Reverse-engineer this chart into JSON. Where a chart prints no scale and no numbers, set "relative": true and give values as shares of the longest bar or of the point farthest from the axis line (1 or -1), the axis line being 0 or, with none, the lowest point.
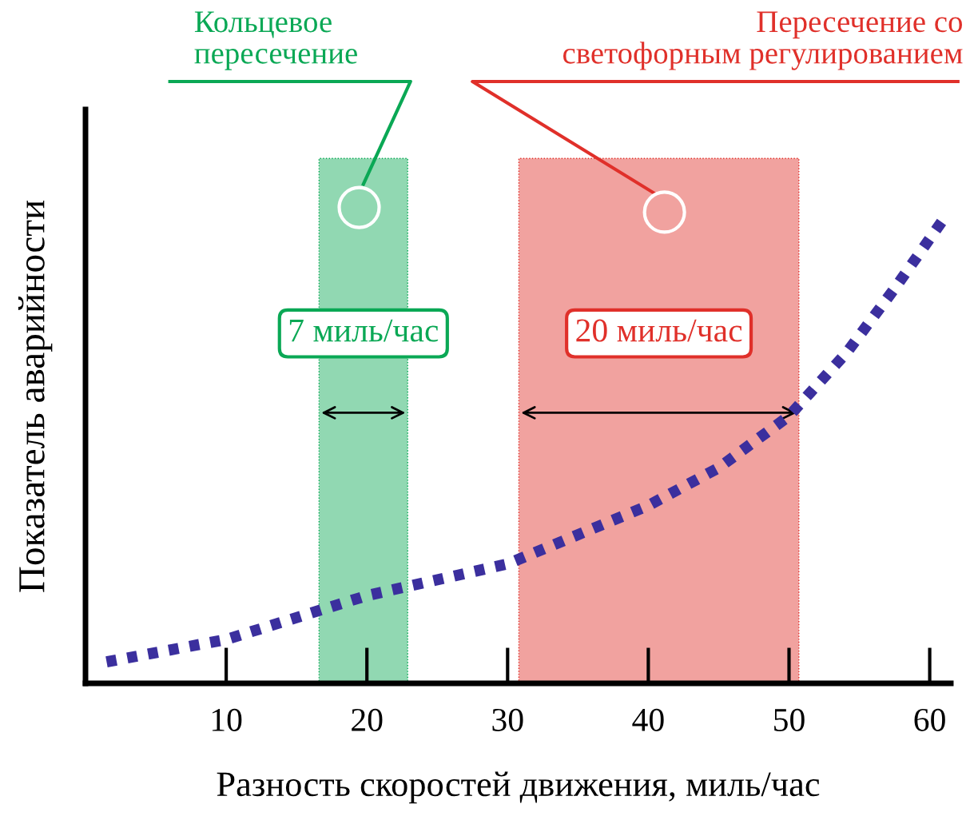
{
  "chart_data": {
    "type": "line",
    "relative": true,
    "xlabel": "Разность скоростей движения, миль/час",
    "ylabel": "Показатель аварийности",
    "xlim": [
      0,
      61.5
    ],
    "xticks": [
      10,
      20,
      30,
      40,
      50,
      60
    ],
    "grid": false,
    "x": [
      1.5,
      10,
      20,
      30,
      40,
      45,
      50,
      54.1,
      57.5,
      61.1
    ],
    "series": [
      {
        "color": "#3b2f9e",
        "line_style": "dotted",
        "values": [
          0.046,
          0.094,
          0.188,
          0.256,
          0.381,
          0.462,
          0.573,
          0.709,
          0.846,
          1.0
        ]
      }
    ],
    "bands": [
      {
        "axis": "x",
        "from": 16.6,
        "to": 22.9,
        "label": "Кольцевое\nпересечение",
        "color": "#0aa855"
      },
      {
        "axis": "x",
        "from": 30.8,
        "to": 50.7,
        "label": "Пересечение со\nсветофорным регулированием",
        "color": "#e0302a"
      }
    ],
    "annotations": [
      "7 миль/час",
      "20 миль/час"
    ]
  }
}
